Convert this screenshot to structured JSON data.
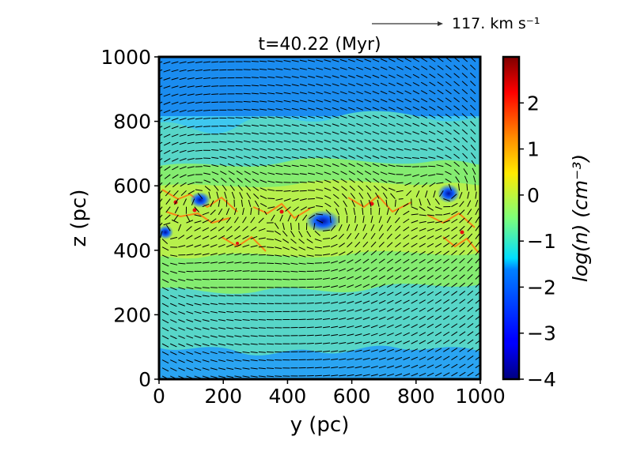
{
  "chart_data": {
    "type": "heatmap",
    "title": "t=40.22 (Myr)",
    "xlabel": "y (pc)",
    "ylabel": "z (pc)",
    "xlim": [
      0,
      1000
    ],
    "ylim": [
      0,
      1000
    ],
    "x_ticks": [
      0,
      200,
      400,
      600,
      800,
      1000
    ],
    "y_ticks": [
      0,
      200,
      400,
      600,
      800,
      1000
    ],
    "colorbar": {
      "label": "log(n) (cm⁻³)",
      "range": [
        -4,
        3
      ],
      "ticks": [
        -4,
        -3,
        -2,
        -1,
        0,
        1,
        2
      ],
      "tick_labels": [
        "−4",
        "−3",
        "−2",
        "−1",
        "0",
        "1",
        "2"
      ],
      "colormap": "jet"
    },
    "reference_arrow": {
      "label": "117. km s⁻¹",
      "magnitude_km_s": 117
    },
    "density_features": [
      {
        "name": "dense gas layer",
        "y_range": [
          0,
          1000
        ],
        "z_center": 510,
        "log_n": 0.3
      },
      {
        "name": "central void",
        "y": 510,
        "z": 480,
        "log_n": -2.8
      },
      {
        "name": "right void",
        "y": 900,
        "z": 580,
        "log_n": -2.5
      },
      {
        "name": "left void",
        "y": 130,
        "z": 560,
        "log_n": -2.3
      },
      {
        "name": "edge void",
        "y": 20,
        "z": 450,
        "log_n": -2.6
      },
      {
        "name": "upper halo",
        "z_range": [
          850,
          1000
        ],
        "log_n": -2.2
      },
      {
        "name": "lower halo",
        "z_range": [
          0,
          120
        ],
        "log_n": -1.8
      }
    ],
    "colors": {
      "frame": "#000000",
      "arrows": "#000000"
    }
  }
}
